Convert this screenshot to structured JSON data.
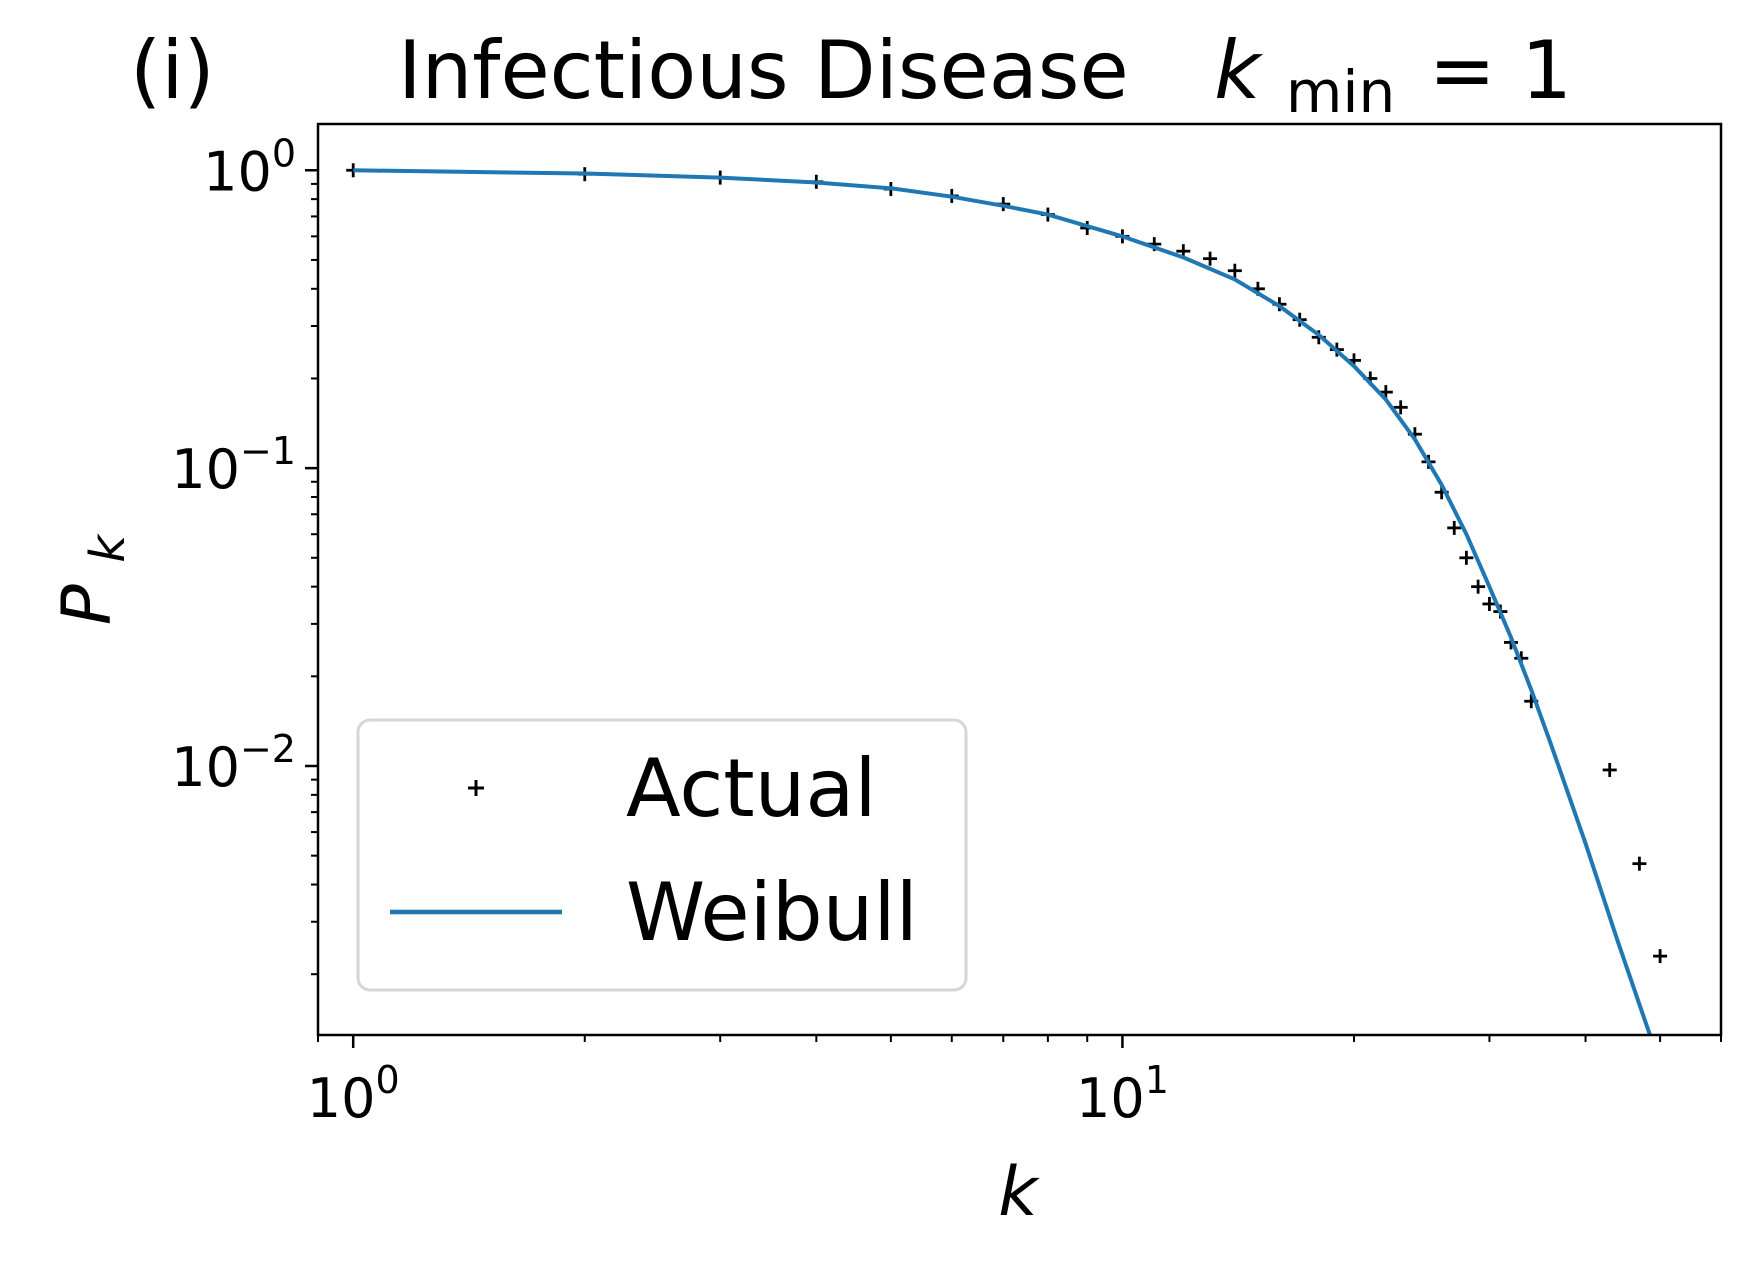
{
  "panel_label": "(i)",
  "title_text": "Infectious Disease",
  "title_k": "k",
  "title_sub": "min",
  "title_eq": "= 1",
  "xlabel": "k",
  "ylabel_main": "P",
  "ylabel_sub": "k",
  "legend": {
    "actual": "Actual",
    "weibull": "Weibull"
  },
  "chart_data": {
    "type": "scatter",
    "xscale": "log",
    "yscale": "log",
    "xlim": [
      0.9,
      60
    ],
    "ylim": [
      0.00125,
      1.43
    ],
    "grid": false,
    "legend_position": "lower-left",
    "x_ticks": [
      {
        "value": 1,
        "base": "10",
        "exp": "0"
      },
      {
        "value": 10,
        "base": "10",
        "exp": "1"
      }
    ],
    "y_ticks": [
      {
        "value": 1,
        "base": "10",
        "exp": "0"
      },
      {
        "value": 0.1,
        "base": "10",
        "exp": "−1"
      },
      {
        "value": 0.01,
        "base": "10",
        "exp": "−2"
      }
    ],
    "series": [
      {
        "name": "Actual",
        "style": "marker-plus",
        "color": "#000000",
        "x": [
          1,
          2,
          3,
          4,
          5,
          6,
          7,
          8,
          9,
          10,
          11,
          12,
          13,
          14,
          15,
          16,
          17,
          18,
          19,
          20,
          21,
          22,
          23,
          24,
          25,
          26,
          27,
          28,
          29,
          30,
          31,
          32,
          33,
          34,
          43,
          47,
          50
        ],
        "y": [
          1.0,
          0.97,
          0.945,
          0.915,
          0.865,
          0.82,
          0.77,
          0.71,
          0.64,
          0.6,
          0.565,
          0.535,
          0.505,
          0.46,
          0.4,
          0.355,
          0.315,
          0.275,
          0.25,
          0.23,
          0.2,
          0.18,
          0.16,
          0.13,
          0.105,
          0.083,
          0.063,
          0.05,
          0.04,
          0.035,
          0.033,
          0.026,
          0.023,
          0.0165,
          0.0097,
          0.0047,
          0.0023
        ]
      },
      {
        "name": "Weibull",
        "style": "line",
        "color": "#1f77b4",
        "x": [
          1,
          2,
          3,
          4,
          5,
          6,
          7,
          8,
          10,
          12,
          14,
          16,
          18,
          20,
          22,
          24,
          26,
          28,
          30,
          32,
          34,
          36,
          40,
          44,
          48,
          49
        ],
        "y": [
          1.0,
          0.975,
          0.945,
          0.91,
          0.87,
          0.815,
          0.76,
          0.71,
          0.6,
          0.51,
          0.43,
          0.35,
          0.28,
          0.22,
          0.17,
          0.125,
          0.088,
          0.06,
          0.04,
          0.027,
          0.018,
          0.012,
          0.0055,
          0.0026,
          0.00135,
          0.00116
        ]
      }
    ]
  }
}
